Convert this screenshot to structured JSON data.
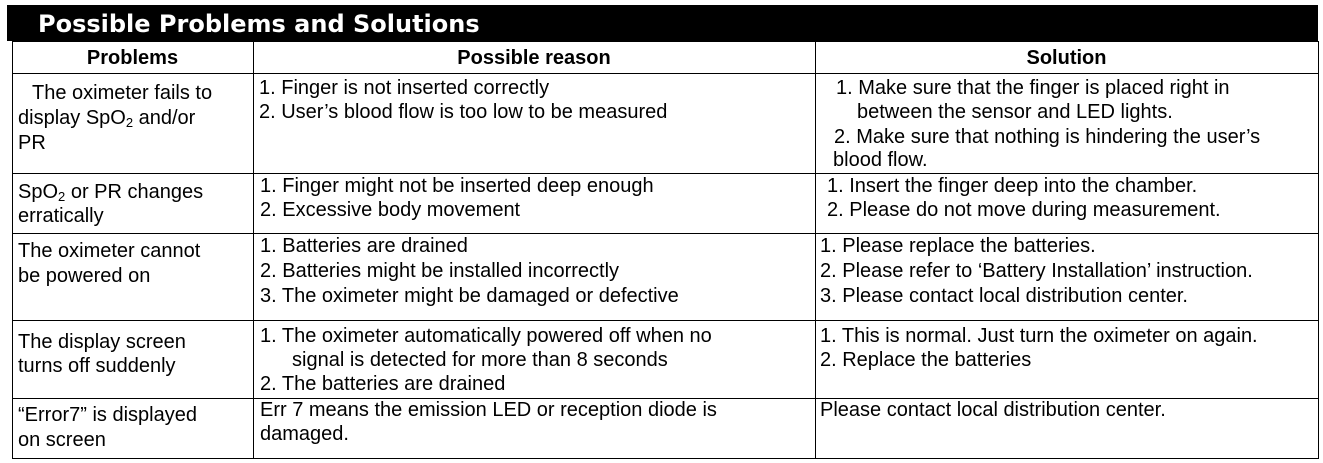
{
  "title": "Possible Problems and Solutions",
  "headers": {
    "problems": "Problems",
    "reason": "Possible reason",
    "solution": "Solution"
  },
  "rows": [
    {
      "problem": [
        "The oximeter fails to",
        "display SpO",
        "2",
        " and/or",
        "PR"
      ],
      "reason": [
        "1. Finger is not inserted correctly",
        "2. User’s blood flow is too low to be measured"
      ],
      "solution": [
        "1. Make sure that the finger is placed right in",
        "between the sensor and LED lights.",
        "2. Make sure that nothing is hindering the user’s",
        "blood flow."
      ]
    },
    {
      "problem": [
        "SpO",
        "2",
        " or PR changes",
        "erratically"
      ],
      "reason": [
        "1. Finger might not be inserted deep enough",
        "2. Excessive body movement"
      ],
      "solution": [
        "1. Insert the finger deep into the chamber.",
        "2. Please do not move during measurement."
      ]
    },
    {
      "problem": [
        "The oximeter cannot",
        "be powered on"
      ],
      "reason": [
        "1. Batteries are drained",
        "2. Batteries might be installed incorrectly",
        "3. The oximeter might be damaged or defective"
      ],
      "solution": [
        "1. Please replace the batteries.",
        "2. Please refer to ‘Battery Installation’ instruction.",
        "3. Please contact local distribution center."
      ]
    },
    {
      "problem": [
        "The display screen",
        "turns off suddenly"
      ],
      "reason": [
        "1. The oximeter automatically powered off when no",
        "signal is detected for more than 8 seconds",
        "2. The batteries are drained"
      ],
      "solution": [
        "1. This is normal. Just turn the oximeter on again.",
        "2. Replace the batteries"
      ]
    },
    {
      "problem": [
        "“Error7” is displayed",
        "on screen"
      ],
      "reason": [
        "Err 7 means the emission LED or reception diode is",
        "damaged."
      ],
      "solution": [
        "Please contact local distribution center."
      ]
    }
  ]
}
